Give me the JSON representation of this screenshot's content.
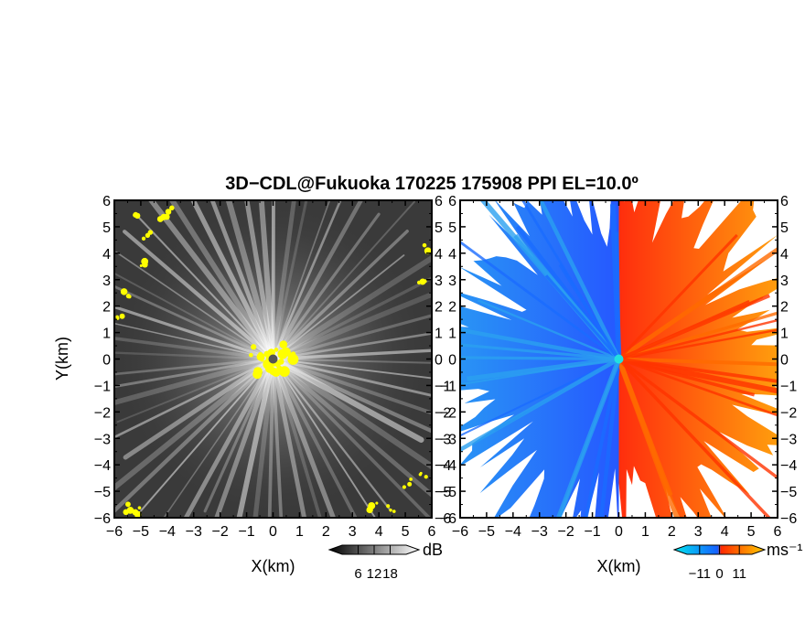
{
  "title": "3D−CDL@Fukuoka 170225 175908 PPI EL=10.0º",
  "chart_data": [
    {
      "type": "heatmap",
      "name": "reflectivity-panel",
      "xlabel": "X(km)",
      "ylabel": "Y(km)",
      "xlim": [
        -6,
        6
      ],
      "ylim": [
        -6,
        6
      ],
      "xticks": [
        -6,
        -5,
        -4,
        -3,
        -2,
        -1,
        0,
        1,
        2,
        3,
        4,
        5,
        6
      ],
      "yticks": [
        -6,
        -5,
        -4,
        -3,
        -2,
        -1,
        0,
        1,
        2,
        3,
        4,
        5,
        6
      ],
      "xtick_labels": [
        "−6",
        "−5",
        "−4",
        "−3",
        "−2",
        "−1",
        "0",
        "1",
        "2",
        "3",
        "4",
        "5",
        "6"
      ],
      "ytick_labels": [
        "−6",
        "−5",
        "−4",
        "−3",
        "−2",
        "−1",
        "0",
        "1",
        "2",
        "3",
        "4",
        "5",
        "6"
      ],
      "colorbar": {
        "unit": "dB",
        "ticks": [
          6,
          12,
          18
        ],
        "tick_labels": [
          "6",
          "12",
          "18"
        ],
        "range": [
          0,
          24
        ],
        "colors": [
          "#000000",
          "#ffffff"
        ]
      },
      "highlight_color": "#ffff00",
      "background_color": "#3a3a3a",
      "radar_marker_color": "#555555"
    },
    {
      "type": "heatmap",
      "name": "velocity-panel",
      "xlabel": "X(km)",
      "xlim": [
        -6,
        6
      ],
      "ylim": [
        -6,
        6
      ],
      "xticks": [
        -6,
        -5,
        -4,
        -3,
        -2,
        -1,
        0,
        1,
        2,
        3,
        4,
        5,
        6
      ],
      "yticks": [
        -6,
        -5,
        -4,
        -3,
        -2,
        -1,
        0,
        1,
        2,
        3,
        4,
        5,
        6
      ],
      "xtick_labels": [
        "−6",
        "−5",
        "−4",
        "−3",
        "−2",
        "−1",
        "0",
        "1",
        "2",
        "3",
        "4",
        "5",
        "6"
      ],
      "ytick_labels": [
        "−6",
        "−5",
        "−4",
        "−3",
        "−2",
        "−1",
        "0",
        "1",
        "2",
        "3",
        "4",
        "5",
        "6"
      ],
      "colorbar": {
        "unit": "ms⁻¹",
        "ticks": [
          -11,
          0,
          11
        ],
        "tick_labels": [
          "−11",
          "0",
          "11"
        ],
        "range": [
          -18,
          18
        ],
        "colors": [
          "#00e5ee",
          "#1560ff",
          "#ff2a00",
          "#ffcc00"
        ]
      },
      "negative_colors": [
        "#2f6fff",
        "#1fa8f0"
      ],
      "positive_colors": [
        "#ff2200",
        "#ffc000"
      ],
      "radar_marker_color": "#22e0e0"
    }
  ]
}
